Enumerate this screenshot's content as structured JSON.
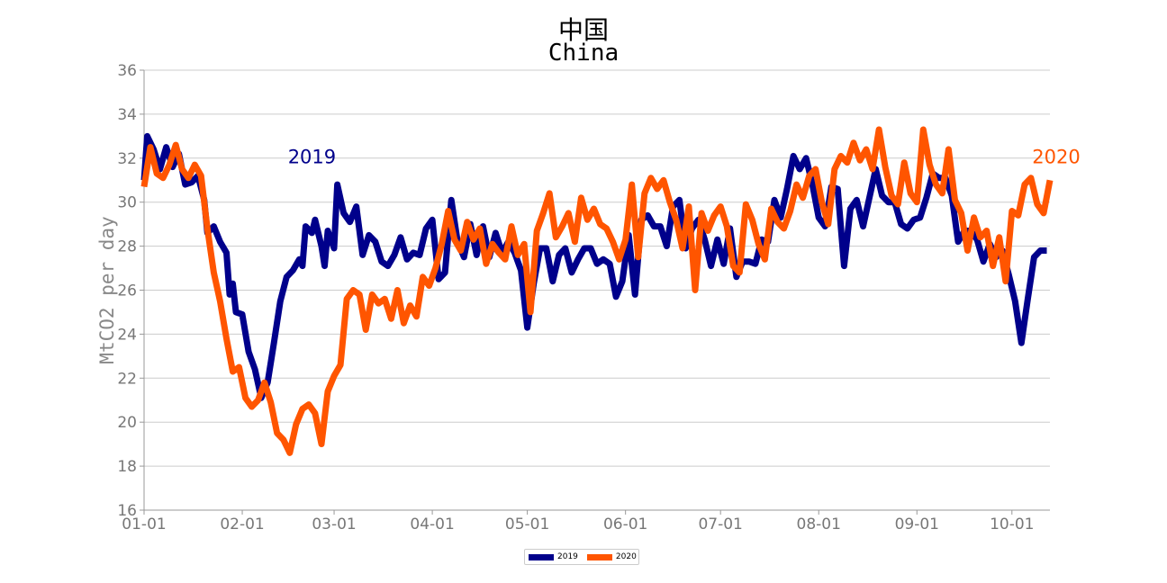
{
  "chart_data": {
    "type": "line",
    "title": "中国",
    "subtitle": "China",
    "xlabel": "",
    "ylabel": "MtCO2 per day",
    "ylim": [
      16,
      36
    ],
    "yticks": [
      16,
      18,
      20,
      22,
      24,
      26,
      28,
      30,
      32,
      34,
      36
    ],
    "xlim": [
      "01-01",
      "10-14"
    ],
    "xticks": [
      "01-01",
      "02-01",
      "03-01",
      "04-01",
      "05-01",
      "06-01",
      "07-01",
      "08-01",
      "09-01",
      "10-01"
    ],
    "grid": "horizontal",
    "legend_position": "bottom-center",
    "series": [
      {
        "name": "2019",
        "color": "#00008b",
        "points": [
          [
            "01-01",
            31.0
          ],
          [
            "01-02",
            33.0
          ],
          [
            "01-04",
            32.4
          ],
          [
            "01-06",
            31.5
          ],
          [
            "01-08",
            32.5
          ],
          [
            "01-10",
            31.6
          ],
          [
            "01-12",
            32.2
          ],
          [
            "01-14",
            30.8
          ],
          [
            "01-16",
            30.9
          ],
          [
            "01-18",
            31.2
          ],
          [
            "01-20",
            30.1
          ],
          [
            "01-21",
            28.6
          ],
          [
            "01-23",
            28.9
          ],
          [
            "01-25",
            28.2
          ],
          [
            "01-27",
            27.7
          ],
          [
            "01-28",
            25.8
          ],
          [
            "01-29",
            26.3
          ],
          [
            "01-30",
            25.0
          ],
          [
            "02-01",
            24.9
          ],
          [
            "02-03",
            23.2
          ],
          [
            "02-05",
            22.4
          ],
          [
            "02-07",
            21.1
          ],
          [
            "02-09",
            21.8
          ],
          [
            "02-11",
            23.6
          ],
          [
            "02-13",
            25.5
          ],
          [
            "02-15",
            26.6
          ],
          [
            "02-17",
            26.9
          ],
          [
            "02-19",
            27.4
          ],
          [
            "02-20",
            27.1
          ],
          [
            "02-21",
            28.9
          ],
          [
            "02-23",
            28.6
          ],
          [
            "02-24",
            29.2
          ],
          [
            "02-26",
            28.0
          ],
          [
            "02-27",
            27.1
          ],
          [
            "02-28",
            28.7
          ],
          [
            "03-01",
            27.9
          ],
          [
            "03-02",
            30.8
          ],
          [
            "03-04",
            29.5
          ],
          [
            "03-06",
            29.1
          ],
          [
            "03-08",
            29.8
          ],
          [
            "03-10",
            27.6
          ],
          [
            "03-12",
            28.5
          ],
          [
            "03-14",
            28.2
          ],
          [
            "03-16",
            27.3
          ],
          [
            "03-18",
            27.1
          ],
          [
            "03-20",
            27.6
          ],
          [
            "03-22",
            28.4
          ],
          [
            "03-24",
            27.4
          ],
          [
            "03-26",
            27.7
          ],
          [
            "03-28",
            27.6
          ],
          [
            "03-30",
            28.8
          ],
          [
            "04-01",
            29.2
          ],
          [
            "04-03",
            26.5
          ],
          [
            "04-05",
            26.8
          ],
          [
            "04-07",
            30.1
          ],
          [
            "04-09",
            28.2
          ],
          [
            "04-11",
            27.5
          ],
          [
            "04-13",
            29.0
          ],
          [
            "04-15",
            27.6
          ],
          [
            "04-17",
            28.9
          ],
          [
            "04-19",
            27.5
          ],
          [
            "04-21",
            28.6
          ],
          [
            "04-23",
            27.7
          ],
          [
            "04-25",
            28.2
          ],
          [
            "04-27",
            27.7
          ],
          [
            "04-29",
            26.9
          ],
          [
            "05-01",
            24.3
          ],
          [
            "05-03",
            26.3
          ],
          [
            "05-05",
            27.9
          ],
          [
            "05-07",
            27.9
          ],
          [
            "05-09",
            26.4
          ],
          [
            "05-11",
            27.6
          ],
          [
            "05-13",
            27.9
          ],
          [
            "05-15",
            26.8
          ],
          [
            "05-17",
            27.4
          ],
          [
            "05-19",
            27.9
          ],
          [
            "05-21",
            27.9
          ],
          [
            "05-23",
            27.2
          ],
          [
            "05-25",
            27.4
          ],
          [
            "05-27",
            27.2
          ],
          [
            "05-29",
            25.7
          ],
          [
            "05-31",
            26.4
          ],
          [
            "06-02",
            28.5
          ],
          [
            "06-04",
            25.8
          ],
          [
            "06-06",
            29.2
          ],
          [
            "06-08",
            29.4
          ],
          [
            "06-10",
            28.9
          ],
          [
            "06-12",
            28.9
          ],
          [
            "06-14",
            28.0
          ],
          [
            "06-16",
            29.8
          ],
          [
            "06-18",
            30.1
          ],
          [
            "06-20",
            27.9
          ],
          [
            "06-22",
            28.8
          ],
          [
            "06-24",
            29.2
          ],
          [
            "06-26",
            28.3
          ],
          [
            "06-28",
            27.1
          ],
          [
            "06-30",
            28.3
          ],
          [
            "07-02",
            27.2
          ],
          [
            "07-04",
            28.8
          ],
          [
            "07-06",
            26.6
          ],
          [
            "07-08",
            27.3
          ],
          [
            "07-10",
            27.3
          ],
          [
            "07-12",
            27.2
          ],
          [
            "07-14",
            28.3
          ],
          [
            "07-16",
            28.2
          ],
          [
            "07-18",
            30.1
          ],
          [
            "07-20",
            29.3
          ],
          [
            "07-22",
            30.6
          ],
          [
            "07-24",
            32.1
          ],
          [
            "07-26",
            31.5
          ],
          [
            "07-28",
            32.0
          ],
          [
            "07-30",
            30.8
          ],
          [
            "08-01",
            29.3
          ],
          [
            "08-03",
            28.9
          ],
          [
            "08-05",
            30.7
          ],
          [
            "08-07",
            30.6
          ],
          [
            "08-09",
            27.1
          ],
          [
            "08-11",
            29.7
          ],
          [
            "08-13",
            30.1
          ],
          [
            "08-15",
            28.9
          ],
          [
            "08-17",
            30.2
          ],
          [
            "08-19",
            31.5
          ],
          [
            "08-21",
            30.3
          ],
          [
            "08-23",
            30.0
          ],
          [
            "08-25",
            30.0
          ],
          [
            "08-27",
            29.0
          ],
          [
            "08-29",
            28.8
          ],
          [
            "08-31",
            29.2
          ],
          [
            "09-02",
            29.3
          ],
          [
            "09-04",
            30.2
          ],
          [
            "09-06",
            31.3
          ],
          [
            "09-08",
            31.1
          ],
          [
            "09-10",
            31.1
          ],
          [
            "09-12",
            30.3
          ],
          [
            "09-14",
            28.2
          ],
          [
            "09-16",
            28.7
          ],
          [
            "09-18",
            28.7
          ],
          [
            "09-20",
            28.3
          ],
          [
            "09-22",
            27.3
          ],
          [
            "09-24",
            28.1
          ],
          [
            "09-26",
            27.5
          ],
          [
            "09-28",
            27.8
          ],
          [
            "09-30",
            26.7
          ],
          [
            "10-02",
            25.5
          ],
          [
            "10-04",
            23.6
          ],
          [
            "10-06",
            25.6
          ],
          [
            "10-08",
            27.5
          ],
          [
            "10-10",
            27.8
          ],
          [
            "10-12",
            27.8
          ]
        ]
      },
      {
        "name": "2020",
        "color": "#ff5500",
        "points": [
          [
            "01-01",
            30.7
          ],
          [
            "01-03",
            32.5
          ],
          [
            "01-05",
            31.3
          ],
          [
            "01-07",
            31.1
          ],
          [
            "01-09",
            31.7
          ],
          [
            "01-11",
            32.6
          ],
          [
            "01-13",
            31.5
          ],
          [
            "01-15",
            31.1
          ],
          [
            "01-17",
            31.7
          ],
          [
            "01-19",
            31.2
          ],
          [
            "01-21",
            28.8
          ],
          [
            "01-23",
            26.8
          ],
          [
            "01-25",
            25.5
          ],
          [
            "01-27",
            23.8
          ],
          [
            "01-29",
            22.3
          ],
          [
            "01-31",
            22.5
          ],
          [
            "02-02",
            21.1
          ],
          [
            "02-04",
            20.7
          ],
          [
            "02-06",
            21.0
          ],
          [
            "02-08",
            21.8
          ],
          [
            "02-10",
            20.9
          ],
          [
            "02-12",
            19.5
          ],
          [
            "02-14",
            19.2
          ],
          [
            "02-16",
            18.6
          ],
          [
            "02-18",
            19.9
          ],
          [
            "02-20",
            20.6
          ],
          [
            "02-22",
            20.8
          ],
          [
            "02-24",
            20.4
          ],
          [
            "02-26",
            19.0
          ],
          [
            "02-28",
            21.4
          ],
          [
            "03-01",
            22.1
          ],
          [
            "03-03",
            22.6
          ],
          [
            "03-05",
            25.6
          ],
          [
            "03-07",
            26.0
          ],
          [
            "03-09",
            25.8
          ],
          [
            "03-11",
            24.2
          ],
          [
            "03-13",
            25.8
          ],
          [
            "03-15",
            25.4
          ],
          [
            "03-17",
            25.6
          ],
          [
            "03-19",
            24.7
          ],
          [
            "03-21",
            26.0
          ],
          [
            "03-23",
            24.5
          ],
          [
            "03-25",
            25.3
          ],
          [
            "03-27",
            24.8
          ],
          [
            "03-29",
            26.6
          ],
          [
            "03-31",
            26.2
          ],
          [
            "04-02",
            27.0
          ],
          [
            "04-04",
            28.1
          ],
          [
            "04-06",
            29.6
          ],
          [
            "04-08",
            28.3
          ],
          [
            "04-10",
            27.8
          ],
          [
            "04-12",
            29.1
          ],
          [
            "04-14",
            28.3
          ],
          [
            "04-16",
            28.8
          ],
          [
            "04-18",
            27.2
          ],
          [
            "04-20",
            28.1
          ],
          [
            "04-22",
            27.7
          ],
          [
            "04-24",
            27.4
          ],
          [
            "04-26",
            28.9
          ],
          [
            "04-28",
            27.6
          ],
          [
            "04-30",
            28.1
          ],
          [
            "05-02",
            25.0
          ],
          [
            "05-04",
            28.7
          ],
          [
            "05-06",
            29.5
          ],
          [
            "05-08",
            30.4
          ],
          [
            "05-10",
            28.4
          ],
          [
            "05-12",
            28.9
          ],
          [
            "05-14",
            29.5
          ],
          [
            "05-16",
            28.2
          ],
          [
            "05-18",
            30.2
          ],
          [
            "05-20",
            29.2
          ],
          [
            "05-22",
            29.7
          ],
          [
            "05-24",
            29.0
          ],
          [
            "05-26",
            28.8
          ],
          [
            "05-28",
            28.2
          ],
          [
            "05-30",
            27.4
          ],
          [
            "06-01",
            28.3
          ],
          [
            "06-03",
            30.8
          ],
          [
            "06-05",
            27.5
          ],
          [
            "06-07",
            30.4
          ],
          [
            "06-09",
            31.1
          ],
          [
            "06-11",
            30.6
          ],
          [
            "06-13",
            31.0
          ],
          [
            "06-15",
            30.0
          ],
          [
            "06-17",
            29.2
          ],
          [
            "06-19",
            27.9
          ],
          [
            "06-21",
            29.8
          ],
          [
            "06-23",
            26.0
          ],
          [
            "06-25",
            29.5
          ],
          [
            "06-27",
            28.7
          ],
          [
            "06-29",
            29.4
          ],
          [
            "07-01",
            29.8
          ],
          [
            "07-03",
            28.9
          ],
          [
            "07-05",
            27.1
          ],
          [
            "07-07",
            26.8
          ],
          [
            "07-09",
            29.9
          ],
          [
            "07-11",
            29.2
          ],
          [
            "07-13",
            28.1
          ],
          [
            "07-15",
            27.4
          ],
          [
            "07-17",
            29.7
          ],
          [
            "07-19",
            29.1
          ],
          [
            "07-21",
            28.8
          ],
          [
            "07-23",
            29.6
          ],
          [
            "07-25",
            30.8
          ],
          [
            "07-27",
            30.2
          ],
          [
            "07-29",
            31.2
          ],
          [
            "07-31",
            31.5
          ],
          [
            "08-02",
            30.0
          ],
          [
            "08-04",
            29.0
          ],
          [
            "08-06",
            31.5
          ],
          [
            "08-08",
            32.1
          ],
          [
            "08-10",
            31.8
          ],
          [
            "08-12",
            32.7
          ],
          [
            "08-14",
            31.9
          ],
          [
            "08-16",
            32.4
          ],
          [
            "08-18",
            31.5
          ],
          [
            "08-20",
            33.3
          ],
          [
            "08-22",
            31.6
          ],
          [
            "08-24",
            30.3
          ],
          [
            "08-26",
            29.9
          ],
          [
            "08-28",
            31.8
          ],
          [
            "08-30",
            30.4
          ],
          [
            "09-01",
            30.0
          ],
          [
            "09-03",
            33.3
          ],
          [
            "09-05",
            31.7
          ],
          [
            "09-07",
            30.8
          ],
          [
            "09-09",
            30.4
          ],
          [
            "09-11",
            32.4
          ],
          [
            "09-13",
            30.1
          ],
          [
            "09-15",
            29.5
          ],
          [
            "09-17",
            27.8
          ],
          [
            "09-19",
            29.3
          ],
          [
            "09-21",
            28.4
          ],
          [
            "09-23",
            28.7
          ],
          [
            "09-25",
            27.1
          ],
          [
            "09-27",
            28.4
          ],
          [
            "09-29",
            26.4
          ],
          [
            "10-01",
            29.6
          ],
          [
            "10-03",
            29.4
          ],
          [
            "10-05",
            30.8
          ],
          [
            "10-07",
            31.1
          ],
          [
            "10-09",
            29.9
          ],
          [
            "10-11",
            29.5
          ],
          [
            "10-13",
            31.0
          ]
        ]
      }
    ],
    "annotations": [
      {
        "text": "2019",
        "color": "#00008b"
      },
      {
        "text": "2020",
        "color": "#ff5500"
      }
    ]
  }
}
